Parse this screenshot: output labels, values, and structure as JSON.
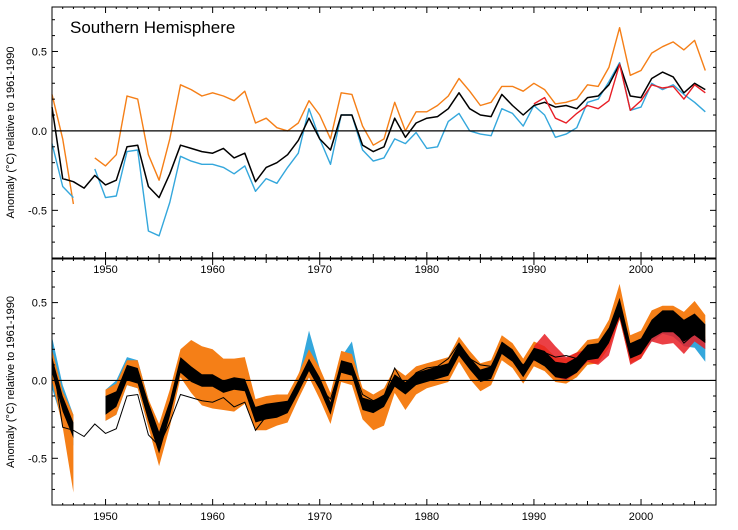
{
  "colors": {
    "orange": "#f57f17",
    "blue": "#34a7dc",
    "black": "#000000",
    "red": "#e81e25"
  },
  "chart_data": [
    {
      "type": "line",
      "title": "Southern Hemisphere",
      "ylabel": "Anomaly (°C) relative to 1961-1990",
      "xlim": [
        1945,
        2007
      ],
      "ylim": [
        -0.8,
        0.78
      ],
      "xticks": [
        1950,
        1960,
        1970,
        1980,
        1990,
        2000
      ],
      "yticks": [
        -0.5,
        0.0,
        0.5
      ],
      "ytick_labels": [
        "-0.5",
        "0.0",
        "0.5"
      ],
      "zero_line": true,
      "series": [
        {
          "color": "orange",
          "x": [
            1945,
            1946,
            1947,
            null,
            1949,
            1950,
            1951,
            1952,
            1953,
            1954,
            1955,
            1956,
            1957,
            1958,
            1959,
            1960,
            1961,
            1962,
            1963,
            1964,
            1965,
            1966,
            1967,
            1968,
            1969,
            1970,
            1971,
            1972,
            1973,
            1974,
            1975,
            1976,
            1977,
            1978,
            1979,
            1980,
            1981,
            1982,
            1983,
            1984,
            1985,
            1986,
            1987,
            1988,
            1989,
            1990,
            1991,
            1992,
            1993,
            1994,
            1995,
            1996,
            1997,
            1998,
            1999,
            2000,
            2001,
            2002,
            2003,
            2004,
            2005,
            2006
          ],
          "y": [
            0.23,
            -0.05,
            -0.46,
            null,
            -0.17,
            -0.22,
            -0.15,
            0.22,
            0.2,
            -0.15,
            -0.31,
            -0.05,
            0.29,
            0.26,
            0.22,
            0.24,
            0.22,
            0.19,
            0.25,
            0.05,
            0.08,
            0.02,
            0.0,
            0.05,
            0.19,
            0.1,
            -0.05,
            0.24,
            0.23,
            0.03,
            -0.09,
            -0.05,
            0.18,
            0.0,
            0.12,
            0.12,
            0.16,
            0.22,
            0.33,
            0.25,
            0.16,
            0.18,
            0.28,
            0.28,
            0.25,
            0.3,
            0.26,
            0.17,
            0.18,
            0.2,
            0.29,
            0.28,
            0.4,
            0.65,
            0.35,
            0.38,
            0.49,
            0.53,
            0.56,
            0.51,
            0.57,
            0.38
          ]
        },
        {
          "color": "blue",
          "x": [
            1945,
            1946,
            1947,
            null,
            1949,
            1950,
            1951,
            1952,
            1953,
            1954,
            1955,
            1956,
            1957,
            1958,
            1959,
            1960,
            1961,
            1962,
            1963,
            1964,
            1965,
            1966,
            1967,
            1968,
            1969,
            1970,
            1971,
            1972,
            1973,
            1974,
            1975,
            1976,
            1977,
            1978,
            1979,
            1980,
            1981,
            1982,
            1983,
            1984,
            1985,
            1986,
            1987,
            1988,
            1989,
            1990,
            1991,
            1992,
            1993,
            1994,
            1995,
            1996,
            1997,
            1998,
            1999,
            2000,
            2001,
            2002,
            2003,
            2004,
            2005,
            2006
          ],
          "y": [
            -0.08,
            -0.35,
            -0.42,
            null,
            -0.24,
            -0.42,
            -0.41,
            -0.13,
            -0.12,
            -0.63,
            -0.66,
            -0.45,
            -0.16,
            -0.19,
            -0.21,
            -0.21,
            -0.23,
            -0.27,
            -0.22,
            -0.38,
            -0.3,
            -0.33,
            -0.23,
            -0.14,
            0.14,
            -0.05,
            -0.21,
            0.1,
            0.1,
            -0.12,
            -0.19,
            -0.17,
            -0.05,
            -0.08,
            -0.01,
            -0.11,
            -0.1,
            0.06,
            0.11,
            0.0,
            -0.02,
            -0.03,
            0.14,
            0.11,
            0.03,
            0.16,
            0.1,
            -0.04,
            -0.02,
            0.02,
            0.18,
            0.2,
            0.31,
            0.43,
            0.13,
            0.15,
            0.3,
            0.26,
            0.29,
            0.23,
            0.18,
            0.12
          ]
        },
        {
          "color": "black",
          "x": [
            1945,
            1946,
            1947,
            1948,
            1949,
            1950,
            1951,
            1952,
            1953,
            1954,
            1955,
            1956,
            1957,
            1958,
            1959,
            1960,
            1961,
            1962,
            1963,
            1964,
            1965,
            1966,
            1967,
            1968,
            1969,
            1970,
            1971,
            1972,
            1973,
            1974,
            1975,
            1976,
            1977,
            1978,
            1979,
            1980,
            1981,
            1982,
            1983,
            1984,
            1985,
            1986,
            1987,
            1988,
            1989,
            1990,
            1991,
            1992,
            1993,
            1994,
            1995,
            1996,
            1997,
            1998,
            1999,
            2000,
            2001,
            2002,
            2003,
            2004,
            2005,
            2006
          ],
          "y": [
            0.15,
            -0.3,
            -0.32,
            -0.36,
            -0.28,
            -0.34,
            -0.31,
            -0.1,
            -0.09,
            -0.35,
            -0.42,
            -0.27,
            -0.09,
            -0.11,
            -0.13,
            -0.14,
            -0.11,
            -0.17,
            -0.14,
            -0.32,
            -0.23,
            -0.2,
            -0.15,
            -0.06,
            0.08,
            -0.05,
            -0.12,
            0.1,
            0.1,
            -0.09,
            -0.13,
            -0.1,
            0.08,
            -0.04,
            0.05,
            0.08,
            0.09,
            0.14,
            0.24,
            0.14,
            0.1,
            0.09,
            0.23,
            0.16,
            0.1,
            0.16,
            0.18,
            0.15,
            0.16,
            0.14,
            0.21,
            0.22,
            0.29,
            0.42,
            0.22,
            0.21,
            0.33,
            0.37,
            0.34,
            0.24,
            0.3,
            0.26
          ]
        },
        {
          "color": "red",
          "x": [
            1990,
            1991,
            1992,
            1993,
            1994,
            1995,
            1996,
            1997,
            1998,
            1999,
            2000,
            2001,
            2002,
            2003,
            2004,
            2005,
            2006
          ],
          "y": [
            0.17,
            0.21,
            0.08,
            0.05,
            0.11,
            0.16,
            0.14,
            0.19,
            0.42,
            0.13,
            0.19,
            0.29,
            0.27,
            0.28,
            0.2,
            0.29,
            0.24
          ]
        }
      ]
    },
    {
      "type": "area",
      "ylabel": "Anomaly (°C) relative to 1961-1990",
      "xlim": [
        1945,
        2007
      ],
      "ylim": [
        -0.8,
        0.78
      ],
      "xticks": [
        1950,
        1960,
        1970,
        1980,
        1990,
        2000
      ],
      "yticks": [
        -0.5,
        0.0,
        0.5
      ],
      "ytick_labels": [
        "-0.5",
        "0.0",
        "0.5"
      ],
      "zero_line": true,
      "x": [
        1945,
        1946,
        1947,
        1948,
        1949,
        1950,
        1951,
        1952,
        1953,
        1954,
        1955,
        1956,
        1957,
        1958,
        1959,
        1960,
        1961,
        1962,
        1963,
        1964,
        1965,
        1966,
        1967,
        1968,
        1969,
        1970,
        1971,
        1972,
        1973,
        1974,
        1975,
        1976,
        1977,
        1978,
        1979,
        1980,
        1981,
        1982,
        1983,
        1984,
        1985,
        1986,
        1987,
        1988,
        1989,
        1990,
        1991,
        1992,
        1993,
        1994,
        1995,
        1996,
        1997,
        1998,
        1999,
        2000,
        2001,
        2002,
        2003,
        2004,
        2005,
        2006
      ],
      "center": [
        0.1,
        -0.15,
        -0.32,
        null,
        null,
        -0.16,
        -0.12,
        0.05,
        0.03,
        -0.2,
        -0.4,
        -0.18,
        0.1,
        0.04,
        0.0,
        0.0,
        -0.04,
        -0.02,
        -0.03,
        -0.22,
        -0.2,
        -0.19,
        -0.17,
        -0.04,
        0.1,
        -0.02,
        -0.18,
        0.09,
        0.07,
        -0.15,
        -0.17,
        -0.13,
        0.0,
        -0.05,
        0.01,
        0.03,
        0.05,
        0.07,
        0.2,
        0.11,
        0.03,
        0.05,
        0.21,
        0.16,
        0.06,
        0.17,
        0.14,
        0.07,
        0.06,
        0.1,
        0.18,
        0.19,
        0.29,
        0.47,
        0.19,
        0.22,
        0.33,
        0.38,
        0.38,
        0.32,
        0.36,
        0.3
      ],
      "black_band": [
        0.05,
        0.05,
        0.05,
        null,
        null,
        0.06,
        0.05,
        0.05,
        0.05,
        0.06,
        0.07,
        0.05,
        0.05,
        0.05,
        0.04,
        0.04,
        0.04,
        0.04,
        0.04,
        0.05,
        0.05,
        0.05,
        0.04,
        0.04,
        0.04,
        0.04,
        0.04,
        0.04,
        0.04,
        0.04,
        0.04,
        0.04,
        0.04,
        0.04,
        0.04,
        0.04,
        0.04,
        0.04,
        0.04,
        0.04,
        0.04,
        0.04,
        0.04,
        0.04,
        0.04,
        0.04,
        0.05,
        0.05,
        0.05,
        0.05,
        0.05,
        0.05,
        0.05,
        0.06,
        0.05,
        0.05,
        0.06,
        0.07,
        0.07,
        0.07,
        0.07,
        0.06
      ],
      "blue_low": [
        0.15,
        0.12,
        0.1,
        null,
        null,
        0.1,
        0.1,
        0.08,
        0.08,
        0.1,
        0.08,
        0.08,
        0.06,
        0.06,
        0.06,
        0.06,
        0.06,
        0.06,
        0.06,
        0.08,
        0.08,
        0.08,
        0.06,
        0.06,
        0.08,
        0.08,
        0.06,
        0.06,
        0.06,
        0.06,
        0.06,
        0.06,
        0.06,
        0.06,
        0.06,
        0.06,
        0.06,
        0.06,
        0.06,
        0.06,
        0.06,
        0.06,
        0.06,
        0.06,
        0.06,
        0.06,
        0.06,
        0.06,
        0.06,
        0.06,
        0.06,
        0.06,
        0.06,
        0.06,
        0.06,
        0.06,
        0.08,
        0.08,
        0.1,
        0.1,
        0.15,
        0.18
      ],
      "blue_high": [
        0.18,
        0.12,
        0.1,
        null,
        null,
        0.1,
        0.12,
        0.1,
        0.1,
        0.08,
        0.06,
        0.06,
        0.06,
        0.06,
        0.06,
        0.06,
        0.06,
        0.06,
        0.06,
        0.06,
        0.06,
        0.06,
        0.06,
        0.06,
        0.22,
        0.1,
        0.06,
        0.06,
        0.18,
        0.06,
        0.06,
        0.06,
        0.06,
        0.06,
        0.06,
        0.06,
        0.06,
        0.06,
        0.06,
        0.06,
        0.06,
        0.06,
        0.06,
        0.06,
        0.06,
        0.06,
        0.06,
        0.06,
        0.06,
        0.06,
        0.06,
        0.06,
        0.06,
        0.06,
        0.06,
        0.06,
        0.08,
        0.08,
        0.08,
        0.08,
        0.08,
        0.08
      ],
      "orange_low": [
        0.1,
        0.15,
        0.4,
        null,
        null,
        0.1,
        0.1,
        0.08,
        0.08,
        0.1,
        0.15,
        0.12,
        0.08,
        0.12,
        0.16,
        0.18,
        0.15,
        0.18,
        0.12,
        0.1,
        0.12,
        0.1,
        0.1,
        0.08,
        0.08,
        0.1,
        0.1,
        0.1,
        0.1,
        0.1,
        0.15,
        0.16,
        0.08,
        0.14,
        0.1,
        0.08,
        0.08,
        0.08,
        0.08,
        0.1,
        0.1,
        0.08,
        0.08,
        0.08,
        0.08,
        0.08,
        0.08,
        0.08,
        0.08,
        0.08,
        0.08,
        0.08,
        0.08,
        0.08,
        0.08,
        0.08,
        0.06,
        0.06,
        0.06,
        0.06,
        0.06,
        0.06
      ],
      "orange_high": [
        0.1,
        0.08,
        0.1,
        null,
        null,
        0.1,
        0.1,
        0.08,
        0.1,
        0.08,
        0.12,
        0.12,
        0.1,
        0.22,
        0.22,
        0.2,
        0.18,
        0.16,
        0.18,
        0.1,
        0.1,
        0.1,
        0.08,
        0.08,
        0.1,
        0.1,
        0.1,
        0.1,
        0.1,
        0.1,
        0.08,
        0.08,
        0.08,
        0.08,
        0.08,
        0.08,
        0.08,
        0.08,
        0.08,
        0.08,
        0.08,
        0.08,
        0.08,
        0.08,
        0.08,
        0.08,
        0.08,
        0.08,
        0.08,
        0.08,
        0.08,
        0.08,
        0.1,
        0.15,
        0.1,
        0.1,
        0.12,
        0.1,
        0.1,
        0.12,
        0.15,
        0.12
      ],
      "red_band": {
        "x": [
          1990,
          1991,
          1992,
          1993,
          1994,
          1995,
          1996,
          1997,
          1998,
          1999,
          2000,
          2001,
          2002,
          2003,
          2004,
          2005,
          2006
        ],
        "low": [
          0.12,
          0.18,
          0.02,
          0.0,
          0.05,
          0.12,
          0.1,
          0.16,
          0.4,
          0.1,
          0.14,
          0.25,
          0.23,
          0.24,
          0.17,
          0.25,
          0.2
        ],
        "high": [
          0.22,
          0.3,
          0.22,
          0.15,
          0.18,
          0.2,
          0.2,
          0.24,
          0.48,
          0.2,
          0.24,
          0.34,
          0.32,
          0.34,
          0.28,
          0.34,
          0.28
        ]
      },
      "thin_line": {
        "color": "black",
        "x": [
          1945,
          1946,
          1947,
          1948,
          1949,
          1950,
          1951,
          1952,
          1953,
          1954,
          1955,
          1956,
          1957,
          1958,
          1959,
          1960,
          1961,
          1962,
          1963,
          1964,
          1965,
          1966,
          1967,
          1968,
          1969,
          1970,
          1971,
          1972,
          1973,
          1974,
          1975,
          1976,
          1977,
          1978,
          1979,
          1980,
          1981,
          1982,
          1983,
          1984,
          1985,
          1986,
          1987,
          1988,
          1989,
          1990,
          1991,
          1992,
          1993,
          1994,
          1995,
          1996,
          1997,
          1998,
          1999,
          2000,
          2001,
          2002,
          2003,
          2004,
          2005,
          2006
        ],
        "y": [
          0.15,
          -0.3,
          -0.32,
          -0.36,
          -0.28,
          -0.34,
          -0.31,
          -0.1,
          -0.09,
          -0.35,
          -0.42,
          -0.27,
          -0.09,
          -0.11,
          -0.13,
          -0.14,
          -0.11,
          -0.17,
          -0.14,
          -0.32,
          -0.23,
          -0.2,
          -0.15,
          -0.06,
          0.08,
          -0.05,
          -0.12,
          0.1,
          0.1,
          -0.09,
          -0.13,
          -0.1,
          0.08,
          -0.04,
          0.05,
          0.08,
          0.09,
          0.14,
          0.24,
          0.14,
          0.1,
          0.09,
          0.23,
          0.16,
          0.1,
          0.16,
          0.18,
          0.15,
          0.16,
          0.14,
          0.21,
          0.22,
          0.29,
          0.42,
          0.22,
          0.21,
          0.33,
          0.37,
          0.34,
          0.24,
          0.3,
          0.26
        ]
      }
    }
  ]
}
